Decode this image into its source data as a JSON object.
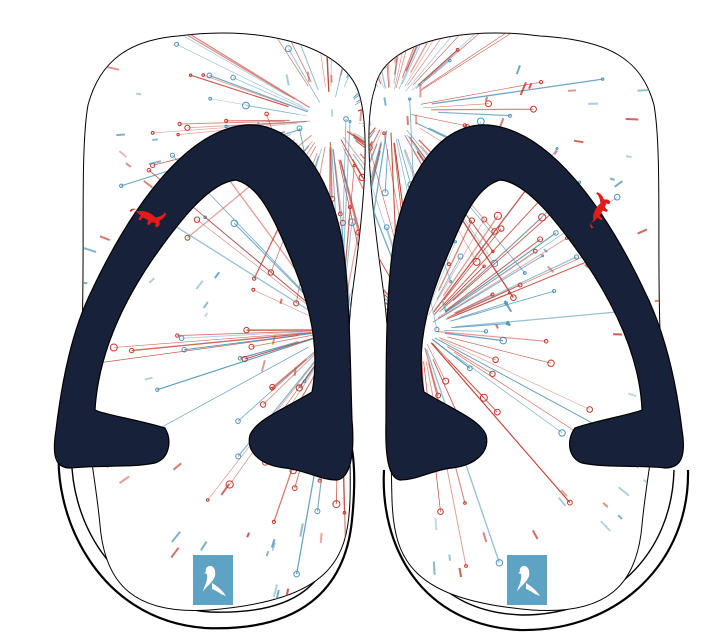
{
  "product": {
    "kind": "flip-flop-pair",
    "colors": {
      "strap": "#172139",
      "sole_outline": "#000000",
      "background": "#ffffff",
      "accent_red": "#c0392b",
      "accent_blue": "#4f93b8",
      "logo_red": "#e31b1b",
      "badge": "#5ea3c4"
    },
    "pattern": "radial-burst-lines-and-dots",
    "icons": [
      "bull-logo-icon",
      "bird-badge-icon"
    ]
  }
}
